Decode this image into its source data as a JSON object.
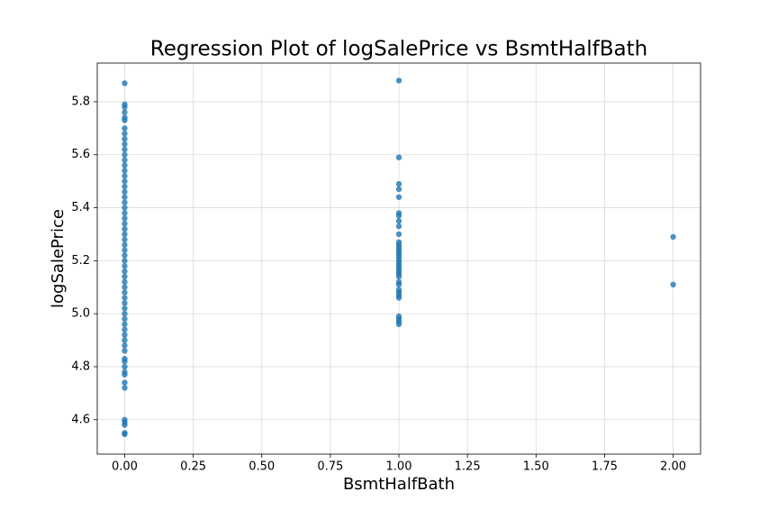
{
  "chart_data": {
    "type": "scatter",
    "title": "Regression Plot of logSalePrice vs BsmtHalfBath",
    "x_label": "BsmtHalfBath",
    "y_label": "logSalePrice",
    "color": "#1f77b4",
    "grid": true,
    "xlim": [
      -0.1,
      2.1
    ],
    "ylim": [
      4.47,
      5.946
    ],
    "xticks": [
      {
        "value": 0,
        "label": "0.00"
      },
      {
        "value": 0.25,
        "label": "0.25"
      },
      {
        "value": 0.5,
        "label": "0.50"
      },
      {
        "value": 0.75,
        "label": "0.75"
      },
      {
        "value": 1,
        "label": "1.00"
      },
      {
        "value": 1.25,
        "label": "1.25"
      },
      {
        "value": 1.5,
        "label": "1.50"
      },
      {
        "value": 1.75,
        "label": "1.75"
      },
      {
        "value": 2,
        "label": "2.00"
      }
    ],
    "yticks": [
      4.6,
      4.8,
      {
        "value": 5,
        "label": "5.0"
      },
      5.2,
      5.4,
      5.6,
      5.8
    ],
    "x": [
      0,
      0,
      0,
      0,
      0,
      0,
      0,
      0,
      0,
      0,
      0,
      0,
      0,
      0,
      0,
      0,
      0,
      0,
      0,
      0,
      0,
      0,
      0,
      0,
      0,
      0,
      0,
      0,
      0,
      0,
      0,
      0,
      0,
      0,
      0,
      0,
      0,
      0,
      0,
      0,
      0,
      0,
      0,
      0,
      0,
      0,
      0,
      0,
      0,
      0,
      0,
      0,
      0,
      0,
      0,
      0,
      0,
      0,
      0,
      0,
      0,
      1,
      1,
      1,
      1,
      1,
      1,
      1,
      1,
      1,
      1,
      1,
      1,
      1,
      1,
      1,
      1,
      1,
      1,
      1,
      1,
      1,
      1,
      1,
      1,
      1,
      1,
      1,
      1,
      1,
      1,
      1,
      1,
      1,
      1,
      2,
      2
    ],
    "values": [
      5.87,
      5.79,
      5.78,
      5.76,
      5.74,
      5.73,
      5.7,
      5.68,
      5.66,
      5.64,
      5.62,
      5.6,
      5.58,
      5.56,
      5.54,
      5.52,
      5.5,
      5.48,
      5.46,
      5.44,
      5.42,
      5.4,
      5.38,
      5.36,
      5.34,
      5.32,
      5.3,
      5.28,
      5.26,
      5.24,
      5.22,
      5.2,
      5.18,
      5.16,
      5.14,
      5.12,
      5.1,
      5.08,
      5.06,
      5.04,
      5.02,
      5.0,
      4.98,
      4.96,
      4.94,
      4.92,
      4.9,
      4.88,
      4.86,
      4.83,
      4.82,
      4.8,
      4.78,
      4.77,
      4.74,
      4.72,
      4.6,
      4.59,
      4.58,
      4.55,
      4.545,
      5.88,
      5.59,
      5.49,
      5.47,
      5.44,
      5.38,
      5.37,
      5.35,
      5.33,
      5.3,
      5.27,
      5.26,
      5.25,
      5.24,
      5.23,
      5.22,
      5.21,
      5.2,
      5.19,
      5.18,
      5.17,
      5.16,
      5.15,
      5.14,
      5.12,
      5.11,
      5.09,
      5.08,
      5.07,
      5.06,
      4.99,
      4.98,
      4.97,
      4.96,
      5.29,
      5.11
    ]
  }
}
